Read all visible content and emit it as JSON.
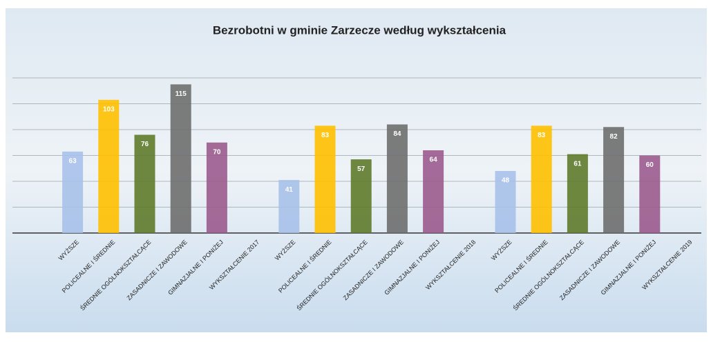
{
  "chart_data": {
    "type": "bar",
    "title": "Bezrobotni w gminie Zarzecze według wykształcenia",
    "categories": [
      "WYŻSZE",
      "POLICEALNE I ŚREDNIE",
      "ŚREDNIE OGÓLNOKSZTAŁCĄCE",
      "ZASADNICZE I ZAWODOWE",
      "GIMNAZJALNE I PONIŻEJ",
      "WYKSZTAŁCENIE 2017",
      "WYŻSZE",
      "POLICEALNE I ŚREDNIE",
      "ŚREDNIE OGÓLNOKSZTAŁCĄCE",
      "ZASADNICZE I ZAWODOWE",
      "GIMNAZJALNE I PONIŻEJ",
      "WYKSZTAŁCENIE 2018",
      "WYŻSZE",
      "POLICEALNE I ŚREDNIE",
      "ŚREDNIE OGÓLNOKSZTAŁCĄCE",
      "ZASADNICZE I ZAWODOWE",
      "GIMNAZJALNE I PONIŻEJ",
      "WYKSZTAŁCENIE 2019"
    ],
    "values": [
      63,
      103,
      76,
      115,
      70,
      null,
      41,
      83,
      57,
      84,
      64,
      null,
      48,
      83,
      61,
      82,
      60,
      null
    ],
    "colors": [
      "#a9c1ea",
      "#ffc000",
      "#5f7b2b",
      "#6e6e6e",
      "#9b5b8e",
      null,
      "#a9c1ea",
      "#ffc000",
      "#5f7b2b",
      "#6e6e6e",
      "#9b5b8e",
      null,
      "#a9c1ea",
      "#ffc000",
      "#5f7b2b",
      "#6e6e6e",
      "#9b5b8e",
      null
    ],
    "ylim": [
      0,
      120
    ],
    "yticks": [
      0,
      20,
      40,
      60,
      80,
      100,
      120
    ],
    "grid": true
  }
}
